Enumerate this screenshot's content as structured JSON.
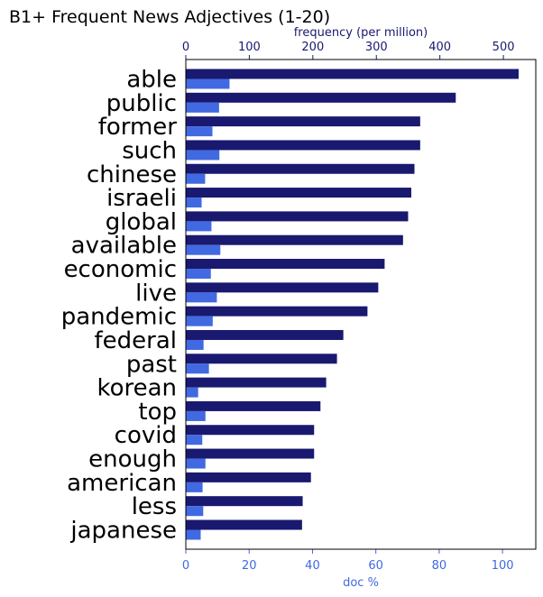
{
  "chart_data": {
    "type": "bar",
    "orientation": "horizontal",
    "title": "B1+ Frequent News Adjectives (1-20)",
    "categories": [
      "able",
      "public",
      "former",
      "such",
      "chinese",
      "israeli",
      "global",
      "available",
      "economic",
      "live",
      "pandemic",
      "federal",
      "past",
      "korean",
      "top",
      "covid",
      "enough",
      "american",
      "less",
      "japanese"
    ],
    "series": [
      {
        "name": "frequency (per million)",
        "axis": "top",
        "color": "#191970",
        "values": [
          524,
          425,
          369,
          369,
          360,
          355,
          350,
          342,
          313,
          303,
          286,
          248,
          238,
          221,
          212,
          202,
          202,
          197,
          184,
          183
        ]
      },
      {
        "name": "doc %",
        "axis": "bottom",
        "color": "#4169e1",
        "values": [
          13.8,
          10.5,
          8.4,
          10.6,
          6.1,
          5.0,
          8.1,
          10.9,
          7.9,
          9.8,
          8.5,
          5.6,
          7.3,
          3.9,
          6.2,
          5.2,
          6.2,
          5.3,
          5.5,
          4.7
        ]
      }
    ],
    "top_axis": {
      "label": "frequency (per million)",
      "ticks": [
        0,
        100,
        200,
        300,
        400,
        500
      ],
      "range": [
        0,
        551
      ],
      "color": "#191970"
    },
    "bottom_axis": {
      "label": "doc %",
      "ticks": [
        0,
        20,
        40,
        60,
        80,
        100
      ],
      "range": [
        0,
        110.5
      ],
      "color": "#4169e1"
    },
    "grid": false,
    "legend": "none"
  }
}
